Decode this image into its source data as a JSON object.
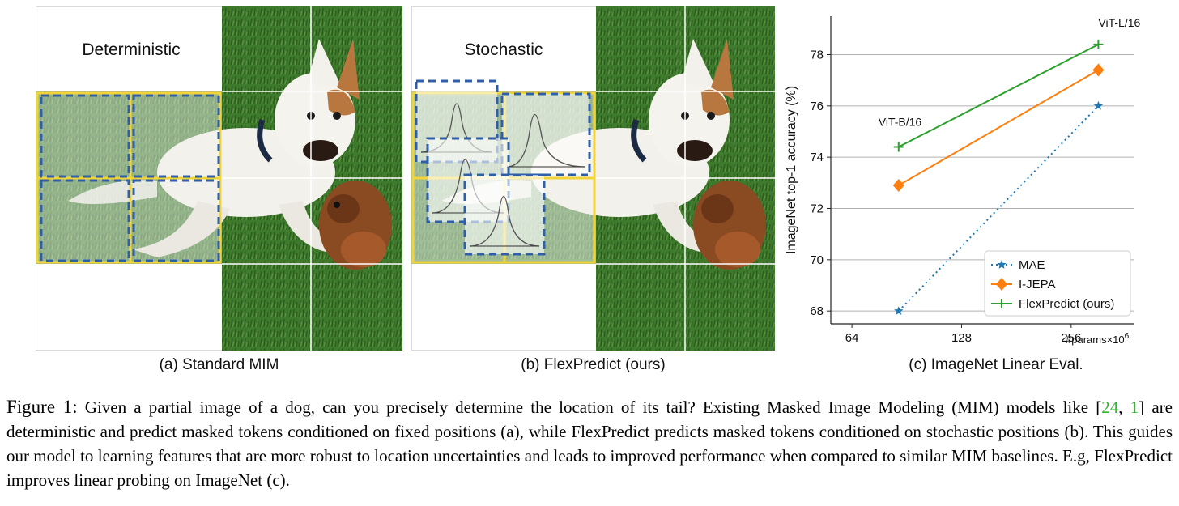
{
  "panels": {
    "a": {
      "label": "(a) Standard MIM",
      "title": "Deterministic"
    },
    "b": {
      "label": "(b) FlexPredict (ours)",
      "title": "Stochastic"
    },
    "c": {
      "label": "(c) ImageNet Linear Eval."
    }
  },
  "chart_data": {
    "type": "line",
    "xscale": "log2",
    "x_ticks": [
      64,
      128,
      256
    ],
    "x_tick_labels": [
      "64",
      "128",
      "256"
    ],
    "x_unit_label": "#params×10",
    "x_unit_exponent": "6",
    "xlim": [
      56,
      380
    ],
    "ylabel": "ImageNet top-1 accuracy (%)",
    "ylim": [
      67.5,
      79.5
    ],
    "y_ticks": [
      68,
      70,
      72,
      74,
      76,
      78
    ],
    "grid": "horizontal",
    "legend_position": "bottom-right",
    "series": [
      {
        "name": "MAE",
        "color": "#1f77b4",
        "marker": "star",
        "linestyle": "dotted",
        "x": [
          86,
          304
        ],
        "y": [
          68.0,
          76.0
        ]
      },
      {
        "name": "I-JEPA",
        "color": "#ff7f0e",
        "marker": "diamond",
        "linestyle": "solid",
        "x": [
          86,
          304
        ],
        "y": [
          72.9,
          77.4
        ]
      },
      {
        "name": "FlexPredict (ours)",
        "color": "#2ca02c",
        "marker": "plus",
        "linestyle": "solid",
        "x": [
          86,
          304
        ],
        "y": [
          74.4,
          78.4
        ]
      }
    ],
    "annotations": [
      {
        "text": "ViT-B/16",
        "x": 86,
        "y": 74.4
      },
      {
        "text": "ViT-L/16",
        "x": 304,
        "y": 78.4
      }
    ]
  },
  "caption": {
    "lead": "Figure 1:",
    "text1": " Given a partial image of a dog, can you precisely determine the location of its tail? Existing Masked Image Modeling (MIM) models like [",
    "cite1": "24",
    "sep": ", ",
    "cite2": "1",
    "text2": "] are deterministic and predict masked tokens conditioned on fixed positions (a), while FlexPredict predicts masked tokens conditioned on stochastic positions (b). This guides our model to learning features that are more robust to location uncertainties and leads to improved performance when compared to similar MIM baselines. E.g, FlexPredict improves linear probing on ImageNet (c)."
  },
  "colors": {
    "grass": "#3e7a2c",
    "grass_dark": "#2d5e22",
    "dog": "#f3f1ec",
    "dog_ear": "#b7773f",
    "mask_yellow": "#f2d43a",
    "mask_blue": "#2f5fa8",
    "toy": "#8a4a22"
  }
}
